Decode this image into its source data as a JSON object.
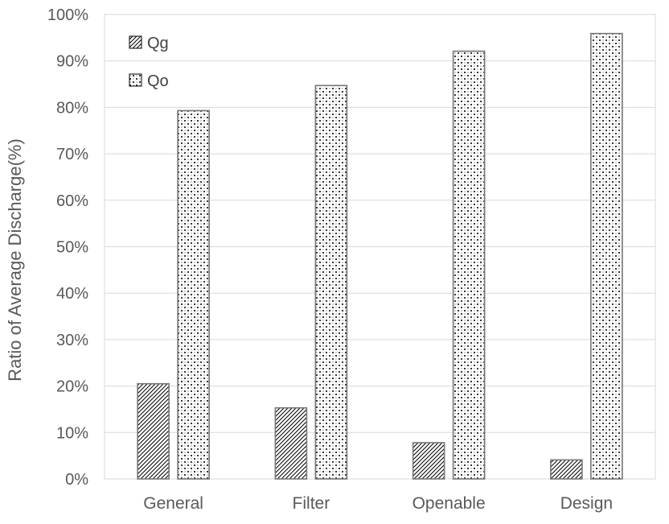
{
  "chart_data": {
    "type": "bar",
    "title": "",
    "categories": [
      "General",
      "Filter",
      "Openable",
      "Design"
    ],
    "series": [
      {
        "name": "Qg",
        "pattern": "diagonal-hatch",
        "values": [
          20.5,
          15.3,
          7.8,
          4.1
        ]
      },
      {
        "name": "Qo",
        "pattern": "dotted",
        "values": [
          79.3,
          84.7,
          92.1,
          95.9
        ]
      }
    ],
    "xlabel": "",
    "ylabel": "Ratio of Average Discharge(%)",
    "ylim": [
      0,
      100
    ],
    "ytick_values": [
      0,
      10,
      20,
      30,
      40,
      50,
      60,
      70,
      80,
      90,
      100
    ],
    "ytick_labels": [
      "0%",
      "10%",
      "20%",
      "30%",
      "40%",
      "50%",
      "60%",
      "70%",
      "80%",
      "90%",
      "100%"
    ],
    "grid": "horizontal",
    "legend_position": "top-left-inside",
    "colors": {
      "background": "#ffffff",
      "gridline": "#d9d9d9",
      "plot_border": "#d9d9d9",
      "axis_text": "#595959",
      "legend_text": "#404040",
      "bar_fill": "#ffffff",
      "bar_border": "#767676",
      "pattern_ink": "#000000"
    }
  }
}
